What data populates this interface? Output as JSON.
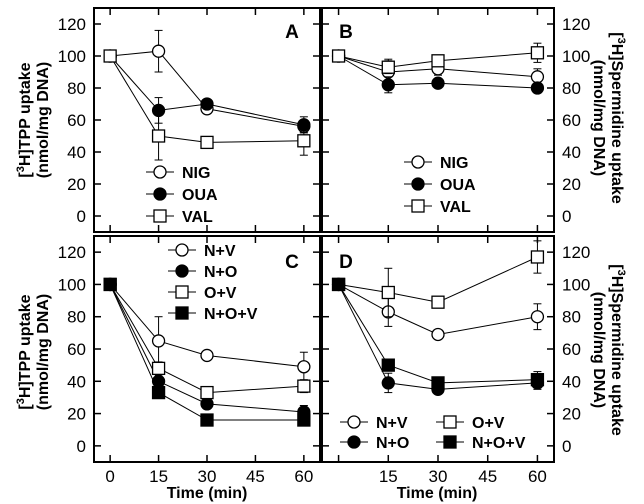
{
  "figure": {
    "ylabel_left": "[3H]TPP uptake",
    "ylabel_left_sup": "3",
    "ylabel_left_main": "H]TPP uptake",
    "ylabel_left_unit": "(nmol/mg DNA)",
    "ylabel_right": "[3H]Spermidine uptake",
    "ylabel_right_sup": "3",
    "ylabel_right_main": "H]Spermidine uptake",
    "ylabel_right_unit": "(nmol/mg DNA)",
    "xlabel": "Time (min)"
  },
  "chart_data": [
    {
      "panel": "A",
      "type": "line",
      "ylabel": "[3H]TPP uptake (nmol/mg DNA)",
      "xlabel": "",
      "xlim": [
        -5,
        65
      ],
      "ylim": [
        -10,
        130
      ],
      "yticks": [
        "0",
        "20",
        "40",
        "60",
        "80",
        "100",
        "120"
      ],
      "xticks": [],
      "legend": "bottom-right",
      "series": [
        {
          "name": "NIG",
          "marker": "open-circle",
          "x": [
            0,
            15,
            30,
            60
          ],
          "y": [
            100,
            103,
            67,
            56
          ],
          "err": [
            0,
            13,
            3,
            4
          ]
        },
        {
          "name": "OUA",
          "marker": "filled-circle",
          "x": [
            0,
            15,
            30,
            60
          ],
          "y": [
            100,
            66,
            70,
            57
          ],
          "err": [
            0,
            8,
            3,
            5
          ]
        },
        {
          "name": "VAL",
          "marker": "open-square",
          "x": [
            0,
            15,
            30,
            60
          ],
          "y": [
            100,
            50,
            46,
            47
          ],
          "err": [
            0,
            15,
            3,
            9
          ]
        }
      ]
    },
    {
      "panel": "B",
      "type": "line",
      "ylabel": "[3H]Spermidine uptake (nmol/mg DNA)",
      "xlabel": "",
      "xlim": [
        -5,
        65
      ],
      "ylim": [
        -10,
        130
      ],
      "yticks": [
        "0",
        "20",
        "40",
        "60",
        "80",
        "100",
        "120"
      ],
      "xticks": [],
      "legend": "bottom-left",
      "series": [
        {
          "name": "NIG",
          "marker": "open-circle",
          "x": [
            0,
            15,
            30,
            60
          ],
          "y": [
            100,
            90,
            92,
            87
          ],
          "err": [
            0,
            8,
            4,
            5
          ]
        },
        {
          "name": "OUA",
          "marker": "filled-circle",
          "x": [
            0,
            15,
            30,
            60
          ],
          "y": [
            100,
            82,
            83,
            80
          ],
          "err": [
            0,
            5,
            2,
            3
          ]
        },
        {
          "name": "VAL",
          "marker": "open-square",
          "x": [
            0,
            15,
            30,
            60
          ],
          "y": [
            100,
            93,
            97,
            102
          ],
          "err": [
            0,
            4,
            3,
            6
          ]
        }
      ]
    },
    {
      "panel": "C",
      "type": "line",
      "ylabel": "[3H]TPP uptake (nmol/mg DNA)",
      "xlabel": "Time (min)",
      "xlim": [
        -5,
        65
      ],
      "ylim": [
        -10,
        130
      ],
      "yticks": [
        "0",
        "20",
        "40",
        "60",
        "80",
        "100",
        "120"
      ],
      "xticks": [
        "0",
        "15",
        "30",
        "45",
        "60"
      ],
      "legend": "top-right",
      "series": [
        {
          "name": "N+V",
          "marker": "open-circle",
          "x": [
            0,
            15,
            30,
            60
          ],
          "y": [
            100,
            65,
            56,
            49
          ],
          "err": [
            0,
            15,
            2,
            9
          ]
        },
        {
          "name": "N+O",
          "marker": "filled-circle",
          "x": [
            0,
            15,
            30,
            60
          ],
          "y": [
            100,
            40,
            26,
            21
          ],
          "err": [
            0,
            5,
            3,
            4
          ]
        },
        {
          "name": "O+V",
          "marker": "open-square",
          "x": [
            0,
            15,
            30,
            60
          ],
          "y": [
            100,
            48,
            33,
            37
          ],
          "err": [
            0,
            4,
            3,
            4
          ]
        },
        {
          "name": "N+O+V",
          "marker": "filled-square",
          "x": [
            0,
            15,
            30,
            60
          ],
          "y": [
            100,
            33,
            16,
            16
          ],
          "err": [
            0,
            3,
            2,
            3
          ]
        }
      ]
    },
    {
      "panel": "D",
      "type": "line",
      "ylabel": "[3H]Spermidine uptake (nmol/mg DNA)",
      "xlabel": "Time (min)",
      "xlim": [
        -5,
        65
      ],
      "ylim": [
        -10,
        130
      ],
      "yticks": [
        "0",
        "20",
        "40",
        "60",
        "80",
        "100",
        "120"
      ],
      "xticks": [
        "15",
        "30",
        "45",
        "60"
      ],
      "legend": "bottom",
      "series": [
        {
          "name": "N+V",
          "marker": "open-circle",
          "x": [
            0,
            15,
            30,
            60
          ],
          "y": [
            100,
            83,
            69,
            80
          ],
          "err": [
            0,
            9,
            2,
            8
          ]
        },
        {
          "name": "O+V",
          "marker": "open-square",
          "x": [
            0,
            15,
            30,
            60
          ],
          "y": [
            100,
            95,
            89,
            117
          ],
          "err": [
            0,
            15,
            3,
            10
          ]
        },
        {
          "name": "N+O",
          "marker": "filled-circle",
          "x": [
            0,
            15,
            30,
            60
          ],
          "y": [
            100,
            39,
            35,
            39
          ],
          "err": [
            0,
            6,
            2,
            4
          ]
        },
        {
          "name": "N+O+V",
          "marker": "filled-square",
          "x": [
            0,
            15,
            30,
            60
          ],
          "y": [
            100,
            50,
            39,
            41
          ],
          "err": [
            0,
            3,
            2,
            5
          ]
        }
      ]
    }
  ]
}
